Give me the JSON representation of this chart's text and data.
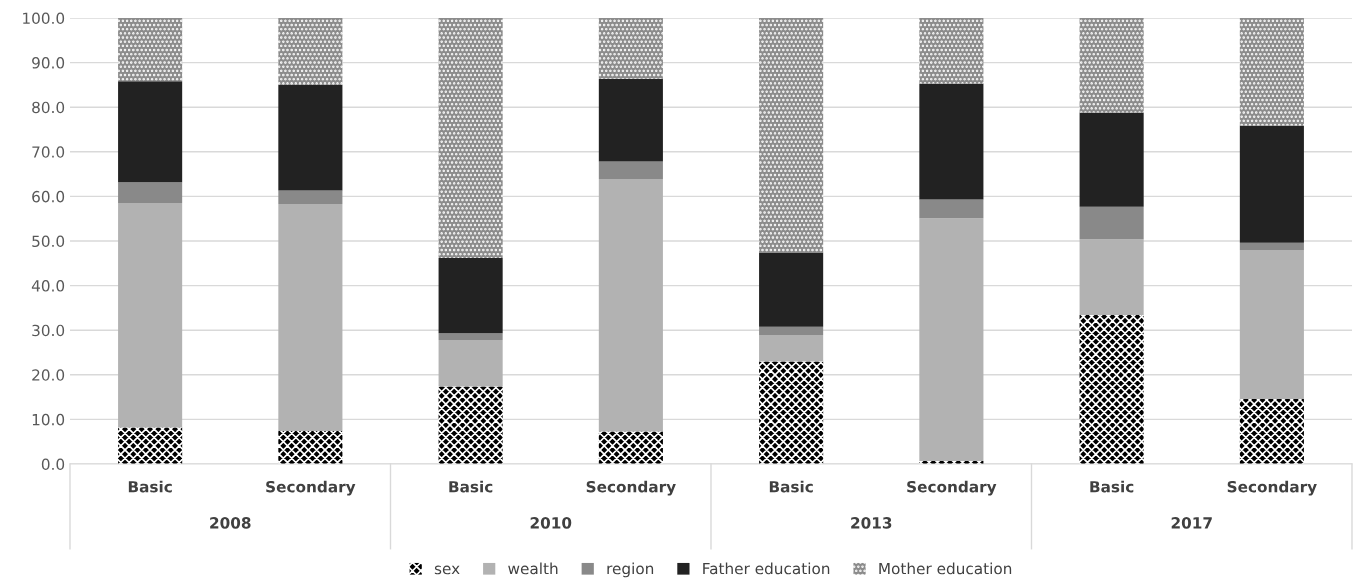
{
  "chart_data": {
    "type": "bar",
    "stacked": true,
    "categories": [
      "Basic",
      "Secondary",
      "Basic",
      "Secondary",
      "Basic",
      "Secondary",
      "Basic",
      "Secondary"
    ],
    "annotations": [
      "2008",
      "2010",
      "2013",
      "2017"
    ],
    "series": [
      {
        "name": "sex",
        "color": "#000000",
        "values": [
          8.2,
          7.4,
          17.4,
          7.3,
          23.0,
          0.7,
          33.4,
          14.6
        ]
      },
      {
        "name": "wealth",
        "color": "#b2b2b2",
        "values": [
          50.3,
          50.9,
          10.4,
          56.6,
          5.9,
          54.4,
          17.0,
          33.4
        ]
      },
      {
        "name": "region",
        "color": "#898989",
        "values": [
          4.7,
          3.0,
          1.5,
          3.9,
          1.9,
          4.2,
          7.3,
          1.6
        ]
      },
      {
        "name": "Father education",
        "color": "#222222",
        "values": [
          22.6,
          23.7,
          16.9,
          18.6,
          16.6,
          26.0,
          21.1,
          26.3
        ]
      },
      {
        "name": "Mother education",
        "color": "#8c8c8c",
        "values": [
          14.2,
          15.0,
          53.8,
          13.6,
          52.6,
          14.7,
          21.2,
          24.1
        ]
      }
    ],
    "ylim": [
      0,
      100
    ],
    "yticks": [
      {
        "value": 0,
        "label": "0.0"
      },
      {
        "value": 10,
        "label": "10.0"
      },
      {
        "value": 20,
        "label": "20.0"
      },
      {
        "value": 30,
        "label": "30.0"
      },
      {
        "value": 40,
        "label": "40.0"
      },
      {
        "value": 50,
        "label": "50.0"
      },
      {
        "value": 60,
        "label": "60.0"
      },
      {
        "value": 70,
        "label": "70.0"
      },
      {
        "value": 80,
        "label": "80.0"
      },
      {
        "value": 90,
        "label": "90.0"
      },
      {
        "value": 100,
        "label": "100.0"
      }
    ],
    "grid": "y",
    "legend": "bottom"
  }
}
